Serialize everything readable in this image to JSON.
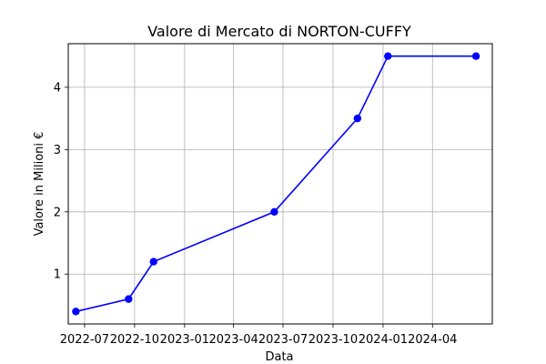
{
  "chart_data": {
    "type": "line",
    "title": "Valore di Mercato di NORTON-CUFFY",
    "xlabel": "Data",
    "ylabel": "Valore in Milioni €",
    "x_scale": "date",
    "x": [
      "2022-06-15",
      "2022-09-20",
      "2022-11-05",
      "2023-06-15",
      "2023-11-15",
      "2024-01-10",
      "2024-06-20"
    ],
    "series": [
      {
        "name": "",
        "values": [
          0.4,
          0.6,
          1.2,
          2.0,
          3.5,
          4.5,
          4.5
        ]
      }
    ],
    "xlim": [
      "2022-06-01",
      "2024-07-20"
    ],
    "ylim": [
      0.2,
      4.7
    ],
    "x_ticks": [
      "2022-07-01",
      "2022-10-01",
      "2023-01-01",
      "2023-04-01",
      "2023-07-01",
      "2023-10-01",
      "2024-01-01",
      "2024-04-01"
    ],
    "x_tick_labels": [
      "2022-07",
      "2022-10",
      "2023-01",
      "2023-04",
      "2023-07",
      "2023-10",
      "2024-01",
      "2024-04"
    ],
    "y_ticks": [
      1,
      2,
      3,
      4
    ],
    "y_tick_labels": [
      "1",
      "2",
      "3",
      "4"
    ],
    "grid": true,
    "colors": {
      "line": "#0000ff",
      "marker": "#0000ff",
      "grid": "#b0b0b0",
      "axes": "#000000"
    }
  }
}
